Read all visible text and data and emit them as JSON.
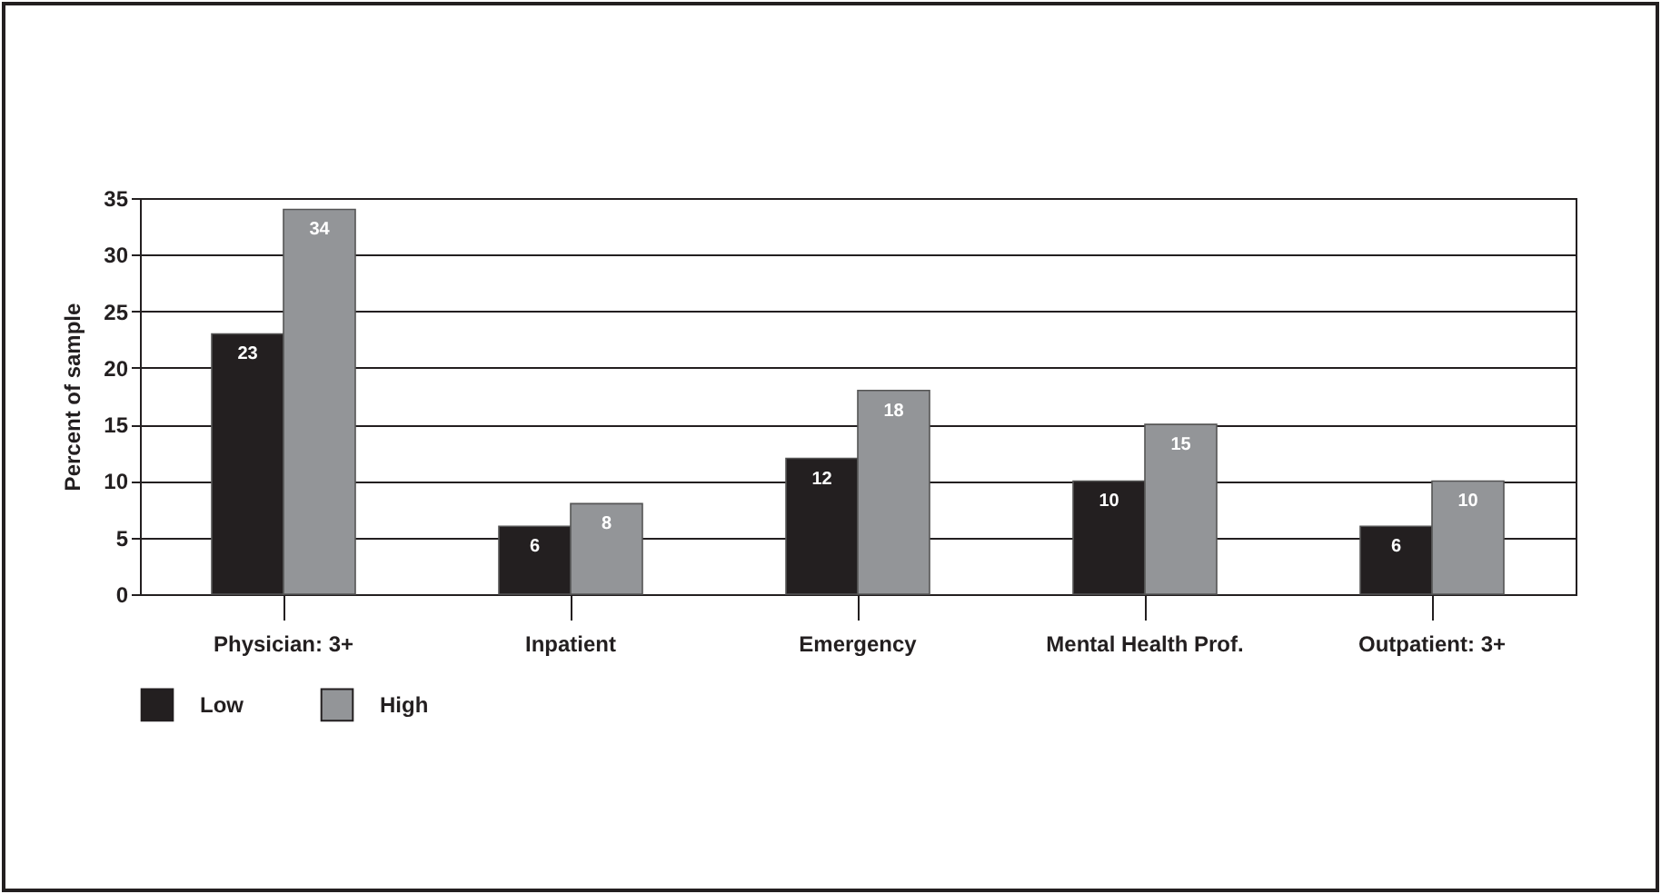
{
  "chart_data": {
    "type": "bar",
    "ylabel": "Percent of sample",
    "categories": [
      "Physician:  3+",
      "Inpatient",
      "Emergency",
      "Mental Health Prof.",
      "Outpatient:  3+"
    ],
    "series": [
      {
        "name": "Low",
        "color": "#231f20",
        "values": [
          23,
          6,
          12,
          10,
          6
        ]
      },
      {
        "name": "High",
        "color": "#939598",
        "values": [
          34,
          8,
          18,
          15,
          10
        ]
      }
    ],
    "ylim": [
      0,
      35
    ],
    "yticks": [
      0,
      5,
      10,
      15,
      20,
      25,
      30,
      35
    ],
    "grid": "y",
    "legend": "bottom",
    "data_labels": true
  }
}
